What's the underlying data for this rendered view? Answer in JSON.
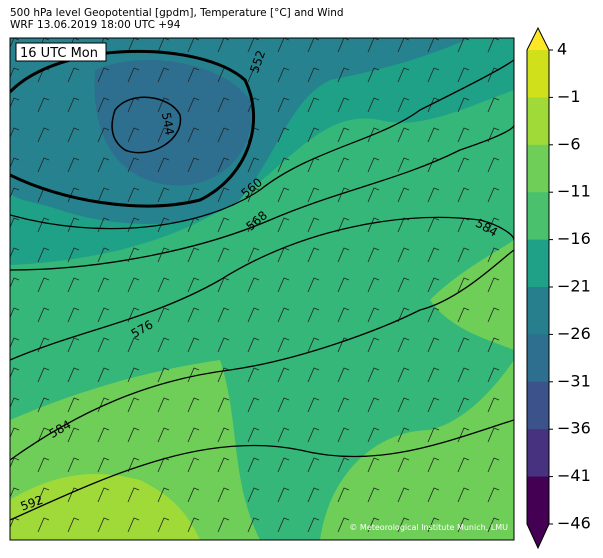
{
  "header": {
    "title": "500 hPa level Geopotential [gpdm], Temperature [°C] and Wind",
    "subtitle": "WRF 13.06.2019 18:00 UTC +94"
  },
  "map": {
    "time_label": "16 UTC Mon",
    "contour_labels": [
      "552",
      "544",
      "560",
      "568",
      "576",
      "584",
      "592",
      "584"
    ],
    "credit": "© Meteorological Institute Munich, LMU"
  },
  "colorbar": {
    "ticks": [
      "4",
      "−1",
      "−6",
      "−11",
      "−16",
      "−21",
      "−26",
      "−31",
      "−36",
      "−41",
      "−46"
    ],
    "colors": [
      "#fde725",
      "#d0e11c",
      "#a0da39",
      "#6ece58",
      "#4ac16d",
      "#1fa187",
      "#277f8e",
      "#2e6e8e",
      "#3b528b",
      "#46327e",
      "#440154"
    ]
  }
}
